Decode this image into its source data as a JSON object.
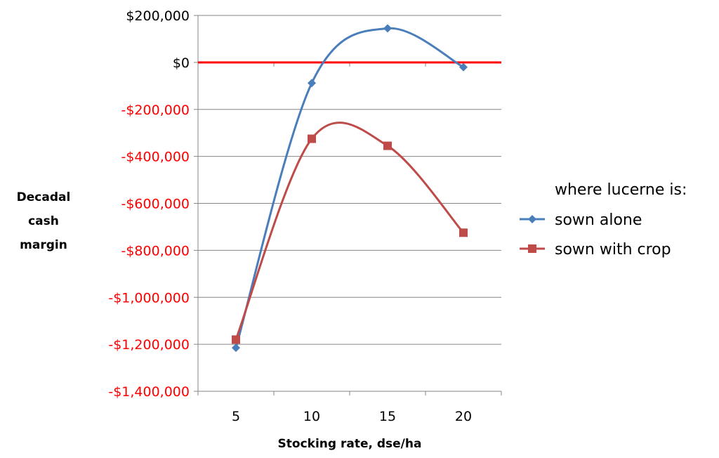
{
  "chart_data": {
    "type": "line",
    "title": "",
    "xlabel": "Stocking rate, dse/ha",
    "ylabel_lines": [
      "Decadal",
      "cash",
      "margin"
    ],
    "x": [
      5,
      10,
      15,
      20
    ],
    "x_tick_labels": [
      "5",
      "10",
      "15",
      "20"
    ],
    "xlim": [
      2.5,
      22.5
    ],
    "ylim": [
      -1400000,
      200000
    ],
    "y_ticks": [
      200000,
      0,
      -200000,
      -400000,
      -600000,
      -800000,
      -1000000,
      -1200000,
      -1400000
    ],
    "y_tick_labels": [
      "$200,000",
      "$0",
      "-$200,000",
      "-$400,000",
      "-$600,000",
      "-$800,000",
      "-$1,000,000",
      "-$1,200,000",
      "-$1,400,000"
    ],
    "smoothed": true,
    "grid": true,
    "legend_position": "right",
    "legend_heading": "where lucerne is:",
    "reference_line": {
      "y": 0,
      "color": "#ff0000"
    },
    "negative_tick_color": "#ff0000",
    "positive_tick_color": "#000000",
    "series": [
      {
        "name": "sown alone",
        "color": "#4a7ebb",
        "marker": "diamond",
        "values": [
          -1215000,
          -88000,
          145000,
          -20000
        ]
      },
      {
        "name": "sown with crop",
        "color": "#be4b48",
        "marker": "square",
        "values": [
          -1180000,
          -325000,
          -355000,
          -725000
        ]
      }
    ]
  }
}
